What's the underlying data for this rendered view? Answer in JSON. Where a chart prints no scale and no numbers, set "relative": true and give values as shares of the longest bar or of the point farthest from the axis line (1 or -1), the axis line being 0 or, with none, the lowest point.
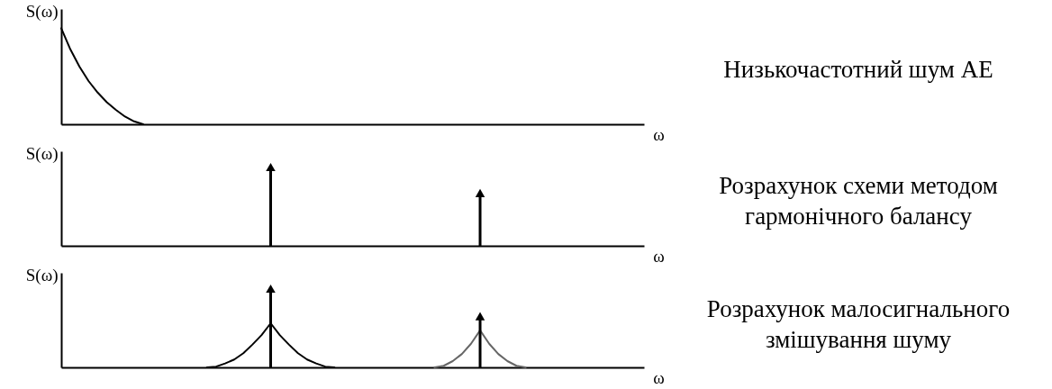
{
  "chart_data": [
    {
      "type": "line",
      "relative": true,
      "ylabel": "S(ω)",
      "xlabel": "ω",
      "annotations": [
        "Низькочастотний шум АЕ"
      ],
      "categories": [
        null,
        null,
        null,
        null,
        null,
        null,
        null,
        null,
        null,
        null,
        null,
        null,
        null,
        null,
        null,
        null,
        null,
        null,
        null,
        null,
        null,
        null,
        null,
        null,
        null,
        null,
        null,
        null,
        null,
        null,
        null,
        null,
        null,
        null,
        null,
        null,
        null,
        null,
        null,
        null,
        null,
        null,
        null,
        null,
        null,
        null,
        null,
        null,
        null,
        null,
        null,
        null,
        null,
        null,
        null,
        null,
        null,
        null,
        null,
        null,
        null,
        null,
        null,
        null,
        null
      ],
      "series": [
        {
          "color": "#000000",
          "values": [
            1.0,
            0.78,
            0.6,
            0.45,
            0.33,
            0.23,
            0.15,
            0.08,
            0.03,
            0.0,
            null,
            null,
            null,
            null,
            null,
            null,
            null,
            null,
            null,
            null,
            null,
            null,
            null,
            null,
            null,
            null,
            null,
            null,
            null,
            null,
            null,
            null,
            null,
            null,
            null,
            null,
            null,
            null,
            null,
            null,
            null,
            null,
            null,
            null,
            null,
            null,
            null,
            null,
            null,
            null,
            null,
            null,
            null,
            null,
            null,
            null,
            null,
            null,
            null,
            null,
            null,
            null,
            null,
            null,
            null
          ]
        }
      ]
    },
    {
      "type": "lollipop",
      "relative": true,
      "marker": "triangle",
      "ylabel": "S(ω)",
      "xlabel": "ω",
      "annotations": [
        "Розрахунок схеми методом гармонічного балансу"
      ],
      "categories": [
        null,
        null,
        null,
        null,
        null,
        null,
        null,
        null,
        null,
        null,
        null,
        null,
        null,
        null,
        null,
        null,
        null,
        null,
        null,
        null,
        null,
        null,
        null,
        null,
        null,
        null,
        null,
        null,
        null,
        null,
        null,
        null,
        null,
        null,
        null,
        null,
        null,
        null,
        null,
        null,
        null,
        null,
        null,
        null,
        null,
        null,
        null,
        null,
        null,
        null,
        null,
        null,
        null,
        null,
        null,
        null,
        null,
        null,
        null,
        null,
        null,
        null,
        null,
        null,
        null
      ],
      "series": [
        {
          "color": "#000000",
          "values": [
            null,
            null,
            null,
            null,
            null,
            null,
            null,
            null,
            null,
            null,
            null,
            null,
            null,
            null,
            null,
            null,
            null,
            null,
            null,
            null,
            null,
            null,
            null,
            1.0,
            null,
            null,
            null,
            null,
            null,
            null,
            null,
            null,
            null,
            null,
            null,
            null,
            null,
            null,
            null,
            null,
            null,
            null,
            null,
            null,
            null,
            null,
            0.67,
            null,
            null,
            null,
            null,
            null,
            null,
            null,
            null,
            null,
            null,
            null,
            null,
            null,
            null,
            null,
            null,
            null,
            null
          ]
        }
      ]
    },
    {
      "type": "lollipop",
      "relative": true,
      "ylabel": "S(ω)",
      "xlabel": "ω",
      "annotations": [
        "Розрахунок малосигнального змішування шуму"
      ],
      "categories": [
        null,
        null,
        null,
        null,
        null,
        null,
        null,
        null,
        null,
        null,
        null,
        null,
        null,
        null,
        null,
        null,
        null,
        null,
        null,
        null,
        null,
        null,
        null,
        null,
        null,
        null,
        null,
        null,
        null,
        null,
        null,
        null,
        null,
        null,
        null,
        null,
        null,
        null,
        null,
        null,
        null,
        null,
        null,
        null,
        null,
        null,
        null,
        null,
        null,
        null,
        null,
        null,
        null,
        null,
        null,
        null,
        null,
        null,
        null,
        null,
        null,
        null,
        null,
        null,
        null
      ],
      "series": [
        {
          "type": "line",
          "color": "#000000",
          "values": [
            null,
            null,
            null,
            null,
            null,
            null,
            null,
            null,
            null,
            null,
            null,
            null,
            null,
            null,
            null,
            null,
            0.0,
            0.01,
            0.05,
            0.1,
            0.18,
            0.29,
            0.41,
            0.56,
            0.41,
            0.29,
            0.18,
            0.1,
            0.05,
            0.01,
            0.0,
            null,
            null,
            null,
            null,
            null,
            null,
            null,
            null,
            null,
            null,
            null,
            null,
            null,
            null,
            null,
            null,
            null,
            null,
            null,
            null,
            null,
            null,
            null,
            null,
            null,
            null,
            null,
            null,
            null,
            null,
            null,
            null,
            null,
            null
          ]
        },
        {
          "type": "line",
          "color": "#666666",
          "values": [
            null,
            null,
            null,
            null,
            null,
            null,
            null,
            null,
            null,
            null,
            null,
            null,
            null,
            null,
            null,
            null,
            null,
            null,
            null,
            null,
            null,
            null,
            null,
            null,
            null,
            null,
            null,
            null,
            null,
            null,
            null,
            null,
            null,
            null,
            null,
            null,
            null,
            null,
            null,
            null,
            null,
            0.0,
            0.02,
            0.08,
            0.17,
            0.3,
            0.47,
            0.3,
            0.17,
            0.08,
            0.02,
            0.0,
            null,
            null,
            null,
            null,
            null,
            null,
            null,
            null,
            null,
            null,
            null,
            null,
            null
          ]
        },
        {
          "marker": "triangle",
          "color": "#000000",
          "values": [
            null,
            null,
            null,
            null,
            null,
            null,
            null,
            null,
            null,
            null,
            null,
            null,
            null,
            null,
            null,
            null,
            null,
            null,
            null,
            null,
            null,
            null,
            null,
            1.0,
            null,
            null,
            null,
            null,
            null,
            null,
            null,
            null,
            null,
            null,
            null,
            null,
            null,
            null,
            null,
            null,
            null,
            null,
            null,
            null,
            null,
            null,
            0.65,
            null,
            null,
            null,
            null,
            null,
            null,
            null,
            null,
            null,
            null,
            null,
            null,
            null,
            null,
            null,
            null,
            null,
            null
          ]
        }
      ]
    }
  ]
}
